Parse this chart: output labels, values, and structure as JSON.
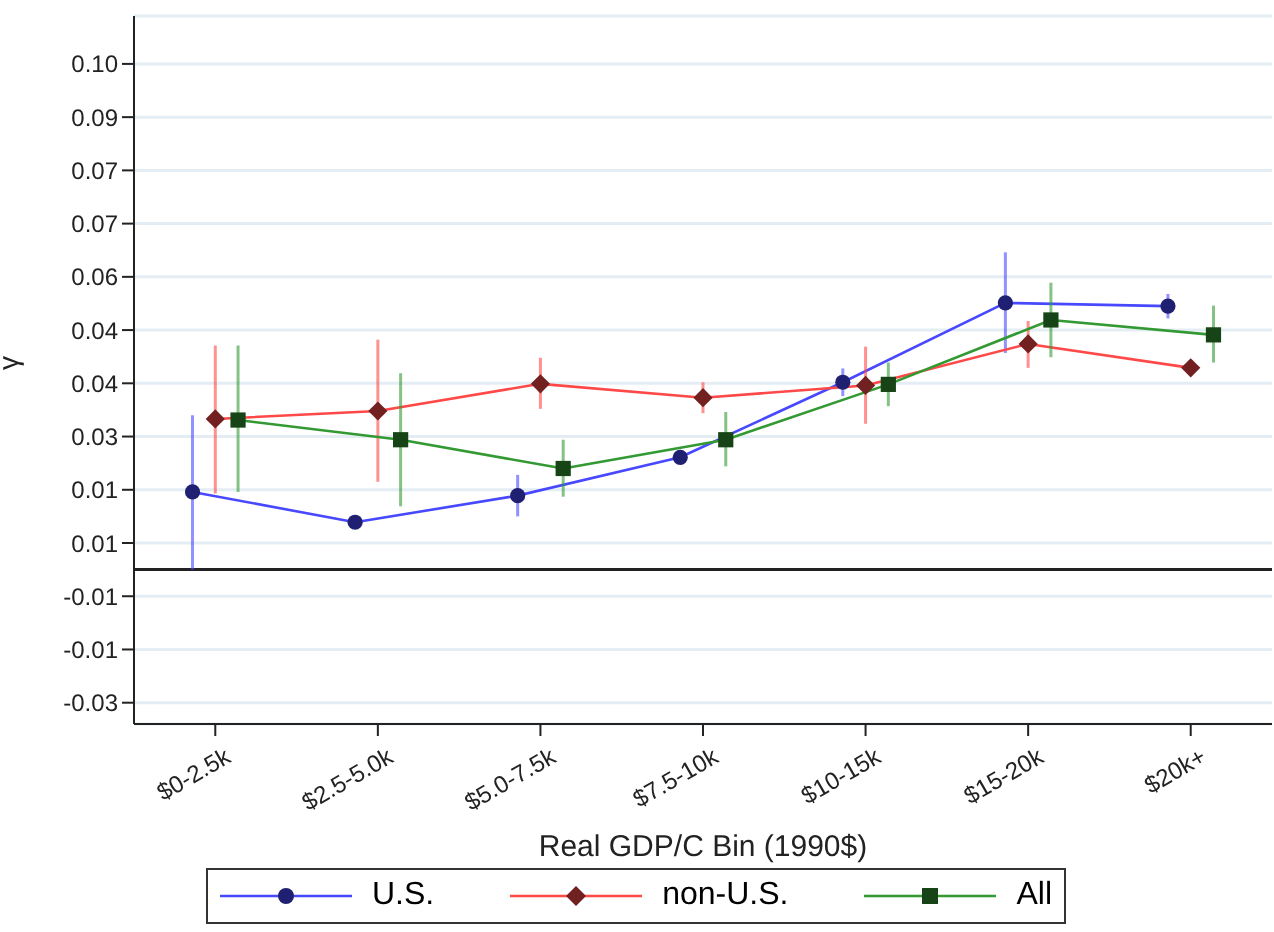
{
  "chart_data": {
    "type": "line",
    "xlabel": "Real GDP/C Bin (1990$)",
    "ylabel": "γ",
    "categories": [
      "$0-2.5k",
      "$2.5-5.0k",
      "$5.0-7.5k",
      "$7.5-10k",
      "$10-15k",
      "$15-20k",
      "$20k+"
    ],
    "ylim": [
      -0.029,
      0.104
    ],
    "yticks": [
      {
        "value": -0.025,
        "label": "-0.03"
      },
      {
        "value": -0.015,
        "label": "-0.01"
      },
      {
        "value": -0.005,
        "label": "-0.01"
      },
      {
        "value": 0.005,
        "label": "0.01"
      },
      {
        "value": 0.015,
        "label": "0.01"
      },
      {
        "value": 0.025,
        "label": "0.03"
      },
      {
        "value": 0.035,
        "label": "0.04"
      },
      {
        "value": 0.045,
        "label": "0.04"
      },
      {
        "value": 0.055,
        "label": "0.06"
      },
      {
        "value": 0.065,
        "label": "0.07"
      },
      {
        "value": 0.075,
        "label": "0.07"
      },
      {
        "value": 0.085,
        "label": "0.09"
      },
      {
        "value": 0.095,
        "label": "0.10"
      }
    ],
    "grid": "y",
    "legend": "bottom",
    "line_style": "solid",
    "ref_lines": [
      {
        "axis": "y",
        "value": 0,
        "color": "#222222"
      }
    ],
    "series": [
      {
        "name": "U.S.",
        "color": "#4848ff",
        "marker": "circle",
        "values": [
          0.0146,
          0.0089,
          0.0139,
          0.0211,
          0.0352,
          0.0501,
          0.0495
        ],
        "errors": [
          [
            0,
            0.029
          ],
          null,
          [
            0.01,
            0.0178
          ],
          null,
          [
            0.0326,
            0.0378
          ],
          [
            0.0407,
            0.0596
          ],
          [
            0.0472,
            0.0518
          ]
        ]
      },
      {
        "name": "non-U.S.",
        "color": "#ff4848",
        "marker": "diamond",
        "values": [
          0.0283,
          0.0298,
          0.0349,
          0.0323,
          0.0346,
          0.0424,
          0.0379
        ],
        "errors": [
          [
            0.0143,
            0.0421
          ],
          [
            0.0165,
            0.0432
          ],
          [
            0.0302,
            0.0398
          ],
          [
            0.0294,
            0.0352
          ],
          [
            0.0274,
            0.0419
          ],
          [
            0.0379,
            0.0467
          ],
          null
        ]
      },
      {
        "name": "All",
        "color": "#339933",
        "marker": "square",
        "values": [
          0.0281,
          0.0244,
          0.019,
          0.0244,
          0.0348,
          0.0469,
          0.0441
        ],
        "errors": [
          [
            0.0146,
            0.0421
          ],
          [
            0.0119,
            0.0369
          ],
          [
            0.0137,
            0.0244
          ],
          [
            0.0194,
            0.0296
          ],
          [
            0.0307,
            0.0389
          ],
          [
            0.0399,
            0.0539
          ],
          [
            0.0389,
            0.0496
          ]
        ]
      }
    ]
  }
}
